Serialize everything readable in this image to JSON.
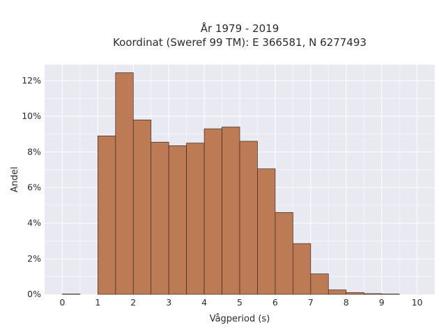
{
  "chart_data": {
    "type": "bar",
    "title_line1": "År 1979 - 2019",
    "title_line2": "Koordinat (Sweref 99 TM): E 366581, N 6277493",
    "xlabel": "Vågperiod (s)",
    "ylabel": "Andel",
    "xlim": [
      -0.5,
      10.5
    ],
    "ylim": [
      0,
      12.9
    ],
    "x_ticks": [
      0,
      1,
      2,
      3,
      4,
      5,
      6,
      7,
      8,
      9,
      10
    ],
    "y_ticks": [
      0,
      2,
      4,
      6,
      8,
      10,
      12
    ],
    "y_tick_labels": [
      "0%",
      "2%",
      "4%",
      "6%",
      "8%",
      "10%",
      "12%"
    ],
    "bin_width": 0.5,
    "bin_starts": [
      0,
      0.5,
      1,
      1.5,
      2,
      2.5,
      3,
      3.5,
      4,
      4.5,
      5,
      5.5,
      6,
      6.5,
      7,
      7.5,
      8,
      8.5,
      9,
      9.5
    ],
    "values": [
      0.02,
      0,
      8.9,
      12.45,
      9.8,
      8.55,
      8.35,
      8.5,
      9.3,
      9.4,
      8.6,
      7.05,
      4.6,
      2.85,
      1.15,
      0.25,
      0.1,
      0.04,
      0.02,
      0
    ],
    "grid": true,
    "colors": {
      "bar_fill": "#bc7a55",
      "bar_edge": "#3a2a20",
      "plot_bg": "#e9e9f1",
      "grid": "#ffffff"
    }
  }
}
